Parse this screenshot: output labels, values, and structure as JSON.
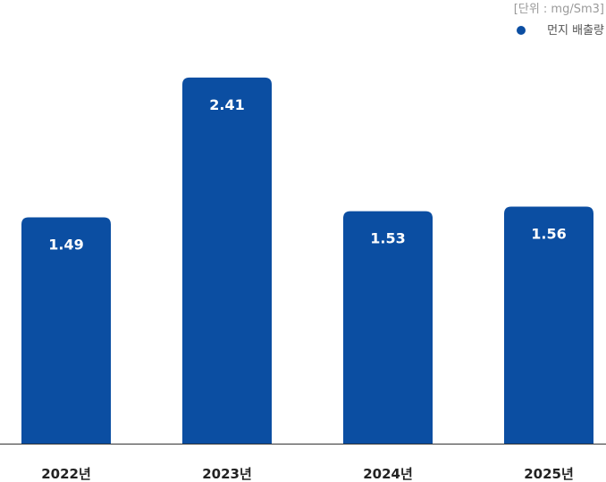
{
  "chart_data": {
    "type": "bar",
    "unit_label": "[단위 : mg/Sm3]",
    "categories": [
      "2022년",
      "2023년",
      "2024년",
      "2025년"
    ],
    "series": [
      {
        "name": "먼지 배출량",
        "values": [
          1.49,
          2.41,
          1.53,
          1.56
        ],
        "color": "#0b4ea2"
      }
    ],
    "data_labels": [
      "1.49",
      "2.41",
      "1.53",
      "1.56"
    ],
    "ylim": [
      0,
      2.85
    ],
    "grid": false,
    "legend_position": "top-right",
    "baseline_color": "#333333",
    "category_label_color": "#222222",
    "data_label_color": "#ffffff"
  }
}
